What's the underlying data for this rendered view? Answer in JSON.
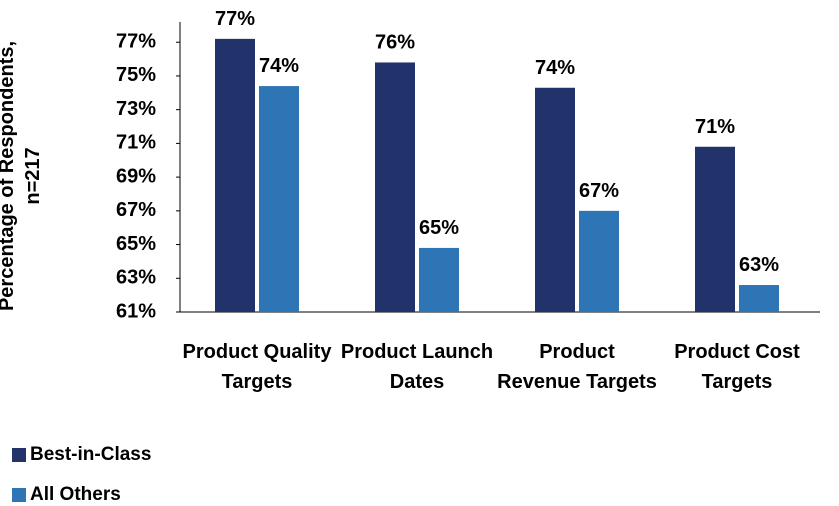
{
  "chart_data": {
    "type": "bar",
    "y_label": "Percentage of Respondents, n=217",
    "categories": [
      "Product Quality Targets",
      "Product Launch Dates",
      "Product Revenue Targets",
      "Product Cost Targets"
    ],
    "series": [
      {
        "name": "Best-in-Class",
        "color": "#22336b",
        "values": [
          77.2,
          75.8,
          74.3,
          70.8
        ],
        "value_labels": [
          "77%",
          "76%",
          "74%",
          "71%"
        ]
      },
      {
        "name": "All Others",
        "color": "#2e75b6",
        "values": [
          74.4,
          64.8,
          67.0,
          62.6
        ],
        "value_labels": [
          "74%",
          "65%",
          "67%",
          "63%"
        ]
      }
    ],
    "ylim": [
      61,
      78.2
    ],
    "yticks": [
      {
        "value": 61,
        "label": "61%"
      },
      {
        "value": 63,
        "label": "63%"
      },
      {
        "value": 65,
        "label": "65%"
      },
      {
        "value": 67,
        "label": "67%"
      },
      {
        "value": 69,
        "label": "69%"
      },
      {
        "value": 71,
        "label": "71%"
      },
      {
        "value": 73,
        "label": "73%"
      },
      {
        "value": 75,
        "label": "75%"
      },
      {
        "value": 77,
        "label": "77%"
      }
    ],
    "grid": false,
    "legend": "bottom-left"
  }
}
